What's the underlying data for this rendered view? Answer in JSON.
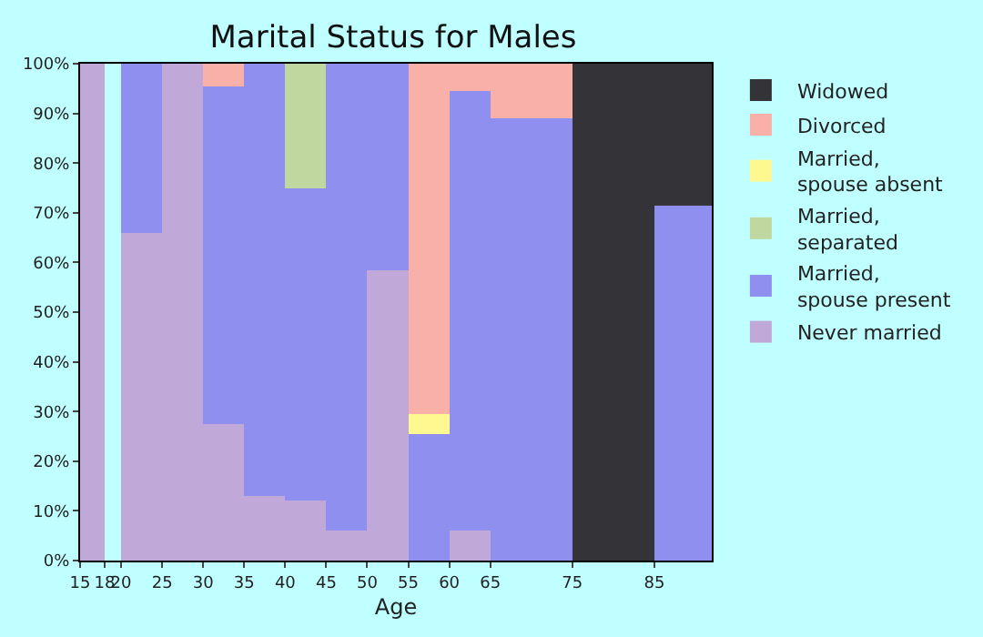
{
  "chart_data": {
    "type": "bar",
    "stacked": true,
    "title": "Marital Status for Males",
    "xlabel": "Age",
    "x": [
      16.5,
      19,
      22.5,
      27.5,
      32.5,
      37.5,
      42.5,
      47.5,
      52.5,
      57.5,
      62.5,
      70,
      80,
      88.5
    ],
    "series": [
      {
        "name": "Never married",
        "color": "#c0a8d8",
        "values": [
          100,
          null,
          66,
          100,
          27.5,
          13,
          12,
          6,
          58.5,
          0,
          6,
          0,
          0,
          0
        ]
      },
      {
        "name": "Married, spouse present",
        "color": "#8f8ff0",
        "values": [
          0,
          null,
          34,
          0,
          68,
          87,
          63,
          94,
          41.5,
          25.5,
          88.5,
          89,
          0,
          71.5
        ]
      },
      {
        "name": "Married, separated",
        "color": "#c0d8a0",
        "values": [
          0,
          null,
          0,
          0,
          0,
          0,
          25,
          0,
          0,
          0,
          0,
          0,
          0,
          0
        ]
      },
      {
        "name": "Married, spouse absent",
        "color": "#fff890",
        "values": [
          0,
          null,
          0,
          0,
          0,
          0,
          0,
          0,
          0,
          4,
          0,
          0,
          0,
          0
        ]
      },
      {
        "name": "Divorced",
        "color": "#f8b0a8",
        "values": [
          0,
          null,
          0,
          0,
          4.5,
          0,
          0,
          0,
          0,
          70.5,
          5.5,
          11,
          0,
          0
        ]
      },
      {
        "name": "Widowed",
        "color": "#333338",
        "values": [
          0,
          null,
          0,
          0,
          0,
          0,
          0,
          0,
          0,
          0,
          0,
          0,
          100,
          28.5
        ]
      }
    ],
    "xlim": [
      15,
      92
    ],
    "xticks": [
      15,
      18,
      20,
      25,
      30,
      35,
      40,
      45,
      50,
      55,
      60,
      65,
      75,
      85
    ],
    "ylim": [
      0,
      100
    ],
    "yticks": [
      {
        "value": 0,
        "label": "0%"
      },
      {
        "value": 10,
        "label": "10%"
      },
      {
        "value": 20,
        "label": "20%"
      },
      {
        "value": 30,
        "label": "30%"
      },
      {
        "value": 40,
        "label": "40%"
      },
      {
        "value": 50,
        "label": "50%"
      },
      {
        "value": 60,
        "label": "60%"
      },
      {
        "value": 70,
        "label": "70%"
      },
      {
        "value": 80,
        "label": "80%"
      },
      {
        "value": 90,
        "label": "90%"
      },
      {
        "value": 100,
        "label": "100%"
      }
    ],
    "grid": false,
    "legend": "right"
  }
}
